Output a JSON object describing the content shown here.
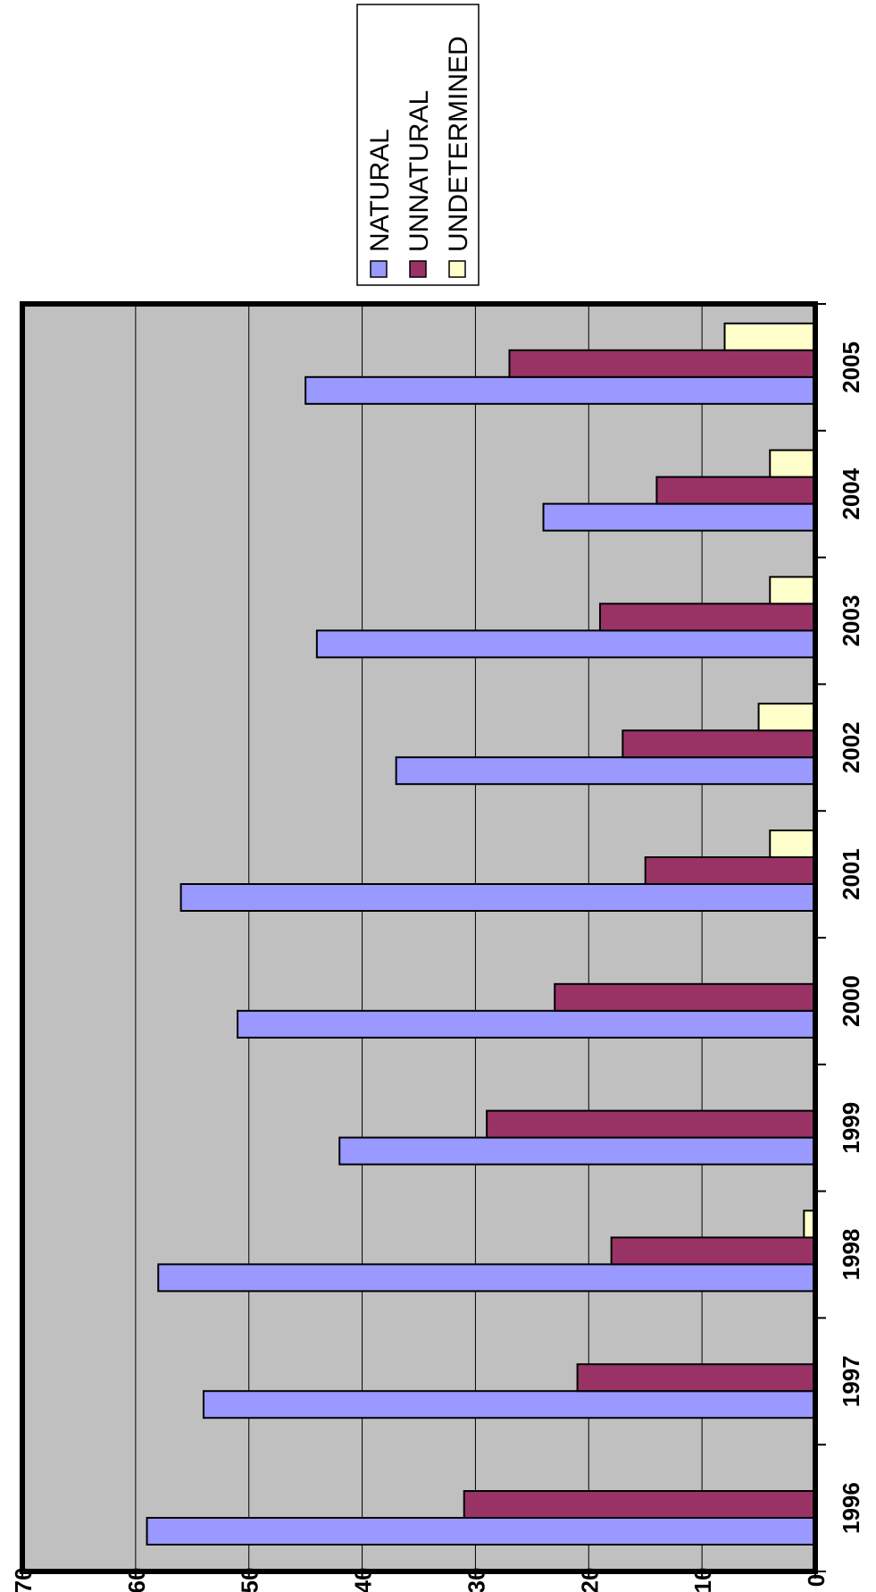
{
  "chart_data": {
    "type": "bar",
    "orientation": "rotated",
    "categories": [
      "1996",
      "1997",
      "1998",
      "1999",
      "2000",
      "2001",
      "2002",
      "2003",
      "2004",
      "2005"
    ],
    "series": [
      {
        "name": "NATURAL",
        "color": "#9999ff",
        "values": [
          59,
          54,
          58,
          42,
          51,
          56,
          37,
          44,
          24,
          45
        ]
      },
      {
        "name": "UNNATURAL",
        "color": "#993366",
        "values": [
          31,
          21,
          18,
          29,
          23,
          15,
          17,
          19,
          14,
          27
        ]
      },
      {
        "name": "UNDETERMINED",
        "color": "#ffffcc",
        "values": [
          0,
          0,
          1,
          0,
          0,
          4,
          5,
          4,
          4,
          8
        ]
      }
    ],
    "yticks": [
      0,
      10,
      20,
      30,
      40,
      50,
      60,
      70
    ],
    "ylim": [
      0,
      70
    ],
    "grid": true,
    "plot_background": "#c0c0c0",
    "legend": "top"
  }
}
